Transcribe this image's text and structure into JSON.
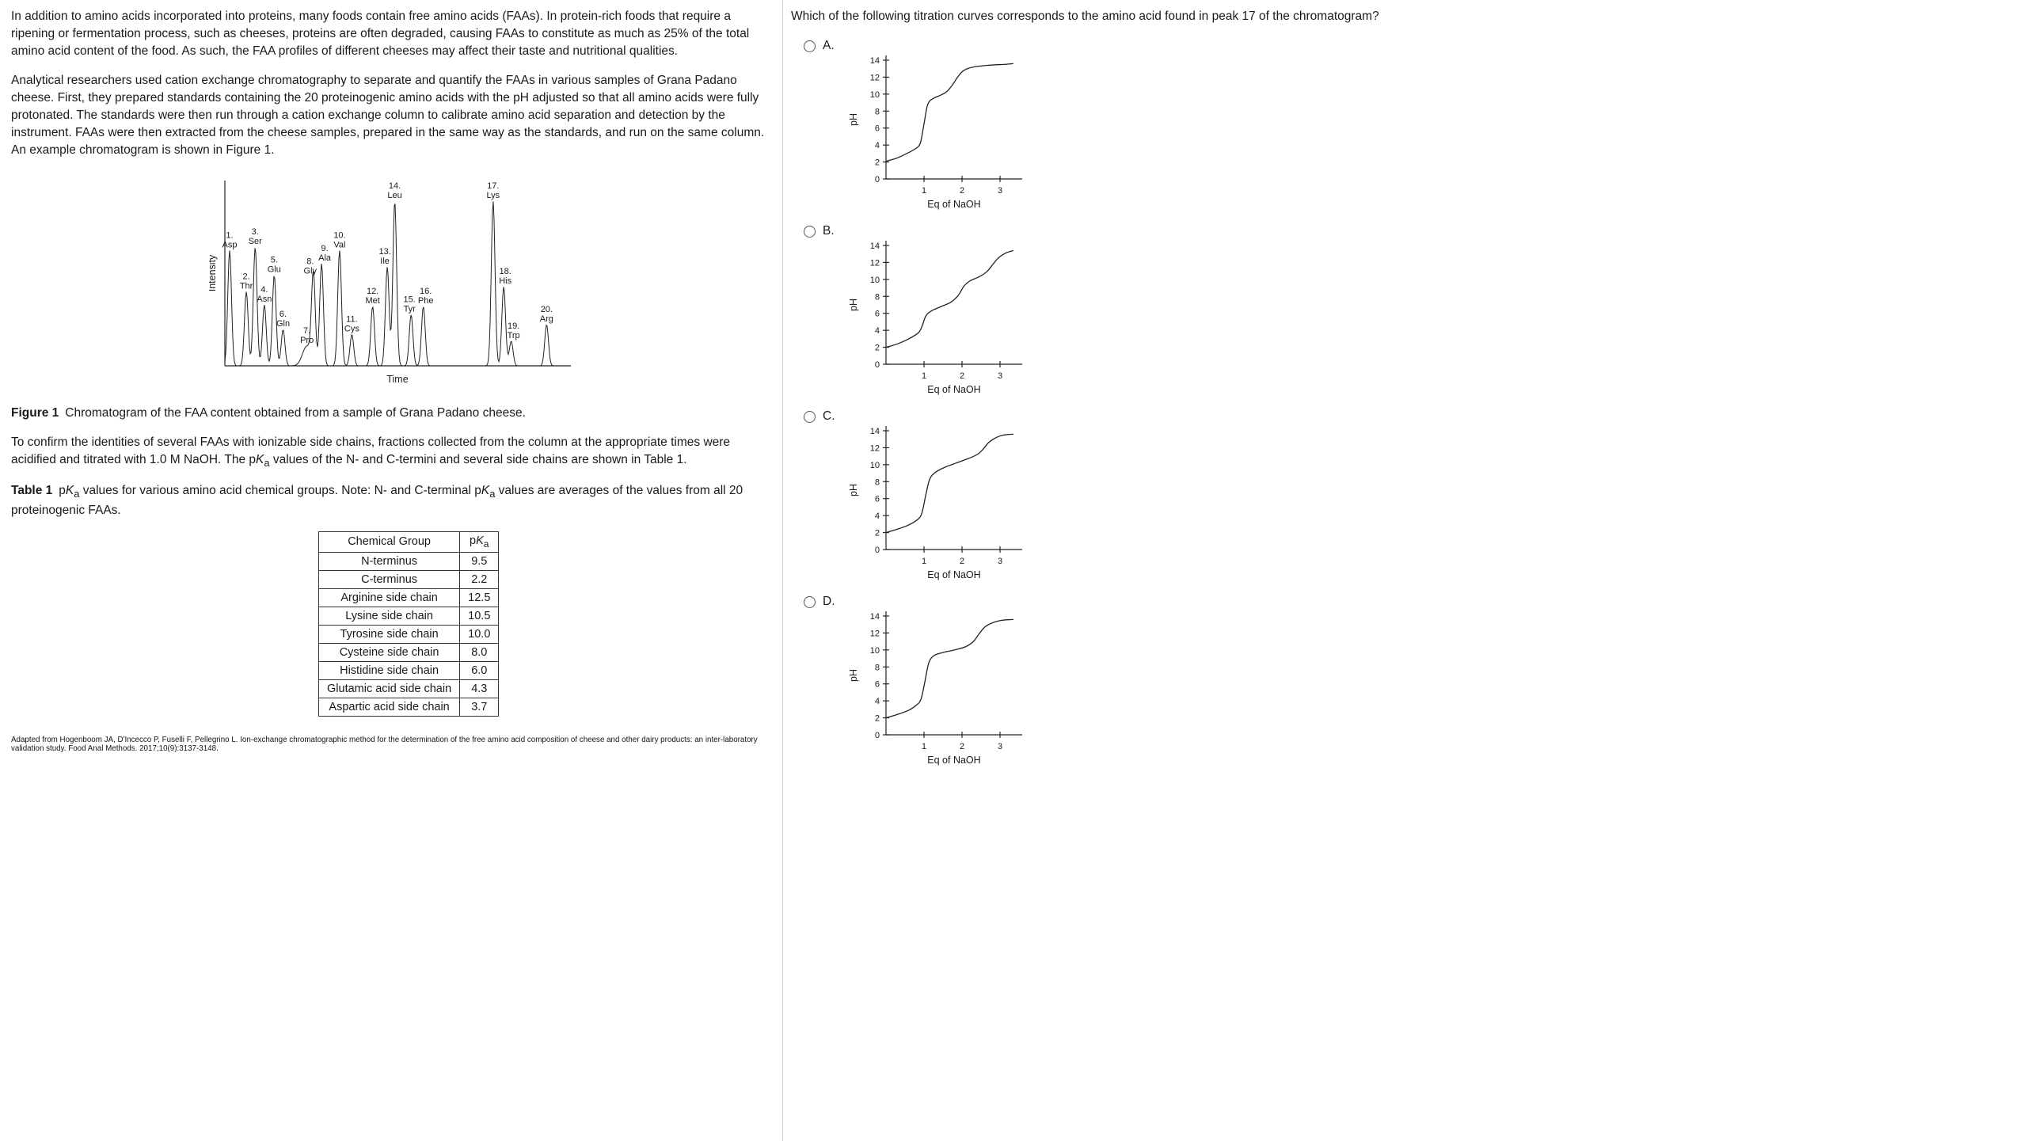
{
  "colors": {
    "text": "#1a1a1a",
    "axis": "#222222",
    "divider": "#d0d0d0"
  },
  "passage": {
    "paragraphs": [
      "In addition to amino acids incorporated into proteins, many foods contain free amino acids (FAAs).  In protein-rich foods that require a ripening or fermentation process, such as cheeses, proteins are often degraded, causing FAAs to constitute as much as 25% of the total amino acid content of the food.  As such, the FAA profiles of different cheeses may affect their taste and nutritional qualities.",
      "Analytical researchers used cation exchange chromatography to separate and quantify the FAAs in various samples of Grana Padano cheese.  First, they prepared standards containing the 20 proteinogenic amino acids with the pH adjusted so that all amino acids were fully protonated.  The standards were then run through a cation exchange column to calibrate amino acid separation and detection by the instrument.  FAAs were then extracted from the cheese samples, prepared in the same way as the standards, and run on the same column.  An example chromatogram is shown in Figure 1."
    ],
    "figure_caption_label": "Figure 1",
    "figure_caption_text": "Chromatogram of the FAA content obtained from a sample of Grana Padano cheese.",
    "paragraph_titration": "To confirm the identities of several FAAs with ionizable side chains, fractions collected from the column at the appropriate times were acidified and titrated with 1.0 M NaOH.  The pK[a] values of the N- and C-termini and several side chains are shown in Table 1.",
    "table_caption_label": "Table 1",
    "table_caption_text": "pK[a] values for various amino acid chemical groups.  Note: N- and C-terminal pK[a] values are averages of the values from all 20 proteinogenic FAAs.",
    "citation": "Adapted from Hogenboom JA, D'Incecco P, Fuselli F, Pellegrino L. Ion-exchange chromatographic method for the determination of the free amino acid composition of cheese and other dairy products: an inter-laboratory validation study. Food Anal Methods. 2017;10(9):3137-3148."
  },
  "table": {
    "headers": [
      "Chemical Group",
      "pK[a]"
    ],
    "rows": [
      [
        "N-terminus",
        "9.5"
      ],
      [
        "C-terminus",
        "2.2"
      ],
      [
        "Arginine side chain",
        "12.5"
      ],
      [
        "Lysine side chain",
        "10.5"
      ],
      [
        "Tyrosine side chain",
        "10.0"
      ],
      [
        "Cysteine side chain",
        "8.0"
      ],
      [
        "Histidine side chain",
        "6.0"
      ],
      [
        "Glutamic acid side chain",
        "4.3"
      ],
      [
        "Aspartic acid side chain",
        "3.7"
      ]
    ]
  },
  "question": {
    "text": "Which of the following titration curves corresponds to the amino acid found in peak 17 of the chromatogram?",
    "options": [
      "A.",
      "B.",
      "C.",
      "D."
    ]
  },
  "chart_data": [
    {
      "type": "line",
      "name": "chromatogram",
      "title": "",
      "xlabel": "Time",
      "ylabel": "Intensity",
      "axis_note": "axes unlabeled numerically; positions and intensities are relative 0-100 estimates",
      "peaks": [
        {
          "number": 1,
          "name": "Asp",
          "position": 1.4,
          "intensity": 70
        },
        {
          "number": 2,
          "name": "Thr",
          "position": 6.3,
          "intensity": 45
        },
        {
          "number": 3,
          "name": "Ser",
          "position": 8.9,
          "intensity": 72
        },
        {
          "number": 4,
          "name": "Asn",
          "position": 11.6,
          "intensity": 37
        },
        {
          "number": 5,
          "name": "Glu",
          "position": 14.5,
          "intensity": 55
        },
        {
          "number": 6,
          "name": "Gln",
          "position": 17.1,
          "intensity": 22
        },
        {
          "number": 7,
          "name": "Pro",
          "position": 24.1,
          "intensity": 12,
          "sigma": 1.3
        },
        {
          "number": 8,
          "name": "Gly",
          "position": 26.0,
          "intensity": 54,
          "label_dx": -4
        },
        {
          "number": 9,
          "name": "Ala",
          "position": 28.4,
          "intensity": 62,
          "label_dx": 4
        },
        {
          "number": 10,
          "name": "Val",
          "position": 33.7,
          "intensity": 70
        },
        {
          "number": 11,
          "name": "Cys",
          "position": 37.3,
          "intensity": 19
        },
        {
          "number": 12,
          "name": "Met",
          "position": 43.4,
          "intensity": 36
        },
        {
          "number": 13,
          "name": "Ile",
          "position": 47.7,
          "intensity": 60,
          "label_dx": -3
        },
        {
          "number": 14,
          "name": "Leu",
          "position": 49.9,
          "intensity": 100
        },
        {
          "number": 15,
          "name": "Tyr",
          "position": 54.7,
          "intensity": 31,
          "label_dx": -2
        },
        {
          "number": 16,
          "name": "Phe",
          "position": 58.3,
          "intensity": 36,
          "label_dx": 3
        },
        {
          "number": 17,
          "name": "Lys",
          "position": 78.8,
          "intensity": 100
        },
        {
          "number": 18,
          "name": "His",
          "position": 81.9,
          "intensity": 48,
          "label_dx": 2
        },
        {
          "number": 19,
          "name": "Trp",
          "position": 84.1,
          "intensity": 15,
          "label_dx": 3
        },
        {
          "number": 20,
          "name": "Arg",
          "position": 94.5,
          "intensity": 25
        }
      ]
    },
    {
      "type": "line",
      "name": "titration-A",
      "option": "A",
      "xlabel": "Eq of NaOH",
      "ylabel": "pH",
      "ylim": [
        0,
        14
      ],
      "yticks": [
        0,
        2,
        4,
        6,
        8,
        10,
        12,
        14
      ],
      "xticks": [
        1,
        2,
        3
      ],
      "points": [
        [
          0,
          2.1
        ],
        [
          0.25,
          2.4
        ],
        [
          0.5,
          2.9
        ],
        [
          0.75,
          3.5
        ],
        [
          0.9,
          4.2
        ],
        [
          1.0,
          6.5
        ],
        [
          1.1,
          8.8
        ],
        [
          1.25,
          9.5
        ],
        [
          1.45,
          9.9
        ],
        [
          1.6,
          10.3
        ],
        [
          1.75,
          11.1
        ],
        [
          1.9,
          12.1
        ],
        [
          2.05,
          12.8
        ],
        [
          2.3,
          13.2
        ],
        [
          2.7,
          13.4
        ],
        [
          3.1,
          13.5
        ],
        [
          3.35,
          13.6
        ]
      ]
    },
    {
      "type": "line",
      "name": "titration-B",
      "option": "B",
      "xlabel": "Eq of NaOH",
      "ylabel": "pH",
      "ylim": [
        0,
        14
      ],
      "yticks": [
        0,
        2,
        4,
        6,
        8,
        10,
        12,
        14
      ],
      "xticks": [
        1,
        2,
        3
      ],
      "points": [
        [
          0,
          2.0
        ],
        [
          0.3,
          2.4
        ],
        [
          0.6,
          3.0
        ],
        [
          0.85,
          3.7
        ],
        [
          0.95,
          4.5
        ],
        [
          1.05,
          5.7
        ],
        [
          1.2,
          6.3
        ],
        [
          1.45,
          6.8
        ],
        [
          1.7,
          7.3
        ],
        [
          1.9,
          8.1
        ],
        [
          2.05,
          9.2
        ],
        [
          2.2,
          9.8
        ],
        [
          2.45,
          10.3
        ],
        [
          2.65,
          10.9
        ],
        [
          2.8,
          11.7
        ],
        [
          2.95,
          12.5
        ],
        [
          3.15,
          13.1
        ],
        [
          3.35,
          13.4
        ]
      ]
    },
    {
      "type": "line",
      "name": "titration-C",
      "option": "C",
      "xlabel": "Eq of NaOH",
      "ylabel": "pH",
      "ylim": [
        0,
        14
      ],
      "yticks": [
        0,
        2,
        4,
        6,
        8,
        10,
        12,
        14
      ],
      "xticks": [
        1,
        2,
        3
      ],
      "points": [
        [
          0,
          2.0
        ],
        [
          0.3,
          2.4
        ],
        [
          0.6,
          2.9
        ],
        [
          0.85,
          3.6
        ],
        [
          0.95,
          4.4
        ],
        [
          1.05,
          6.5
        ],
        [
          1.15,
          8.3
        ],
        [
          1.3,
          9.1
        ],
        [
          1.55,
          9.7
        ],
        [
          1.85,
          10.2
        ],
        [
          2.15,
          10.7
        ],
        [
          2.4,
          11.2
        ],
        [
          2.55,
          11.8
        ],
        [
          2.7,
          12.6
        ],
        [
          2.9,
          13.2
        ],
        [
          3.1,
          13.5
        ],
        [
          3.35,
          13.6
        ]
      ]
    },
    {
      "type": "line",
      "name": "titration-D",
      "option": "D",
      "xlabel": "Eq of NaOH",
      "ylabel": "pH",
      "ylim": [
        0,
        14
      ],
      "yticks": [
        0,
        2,
        4,
        6,
        8,
        10,
        12,
        14
      ],
      "xticks": [
        1,
        2,
        3
      ],
      "points": [
        [
          0,
          2.0
        ],
        [
          0.3,
          2.4
        ],
        [
          0.6,
          2.9
        ],
        [
          0.8,
          3.5
        ],
        [
          0.92,
          4.2
        ],
        [
          1.02,
          6.2
        ],
        [
          1.12,
          8.4
        ],
        [
          1.25,
          9.3
        ],
        [
          1.5,
          9.7
        ],
        [
          1.8,
          10.0
        ],
        [
          2.1,
          10.4
        ],
        [
          2.3,
          11.0
        ],
        [
          2.45,
          11.9
        ],
        [
          2.6,
          12.7
        ],
        [
          2.8,
          13.2
        ],
        [
          3.05,
          13.5
        ],
        [
          3.35,
          13.6
        ]
      ]
    }
  ]
}
